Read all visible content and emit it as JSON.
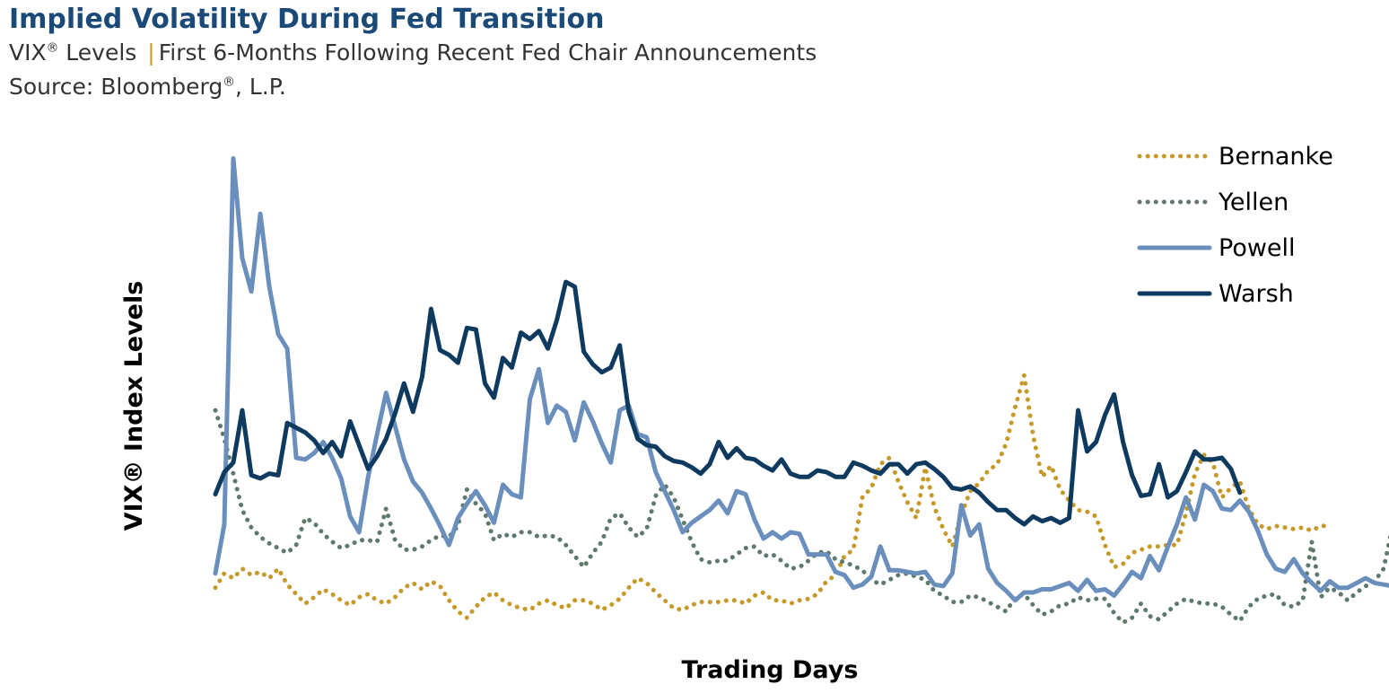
{
  "header": {
    "title": "Implied Volatility During Fed Transition",
    "subtitle_prefix": "VIX",
    "subtitle_reg": "®",
    "subtitle_mid": " Levels",
    "subtitle_sep": "|",
    "subtitle_rest": "First 6-Months Following Recent Fed Chair Announcements",
    "source_prefix": "Source: Bloomberg",
    "source_reg": "®",
    "source_rest": ", L.P."
  },
  "chart_data": {
    "type": "line",
    "title": "Implied Volatility During Fed Transition",
    "xlabel": "Trading Days",
    "ylabel": "VIX® Index Levels",
    "xlim": [
      0,
      129
    ],
    "ylim": [
      8,
      42
    ],
    "grid": false,
    "legend_position": "top-right",
    "colors": {
      "Bernanke": "#c69a2a",
      "Yellen": "#5f7a6b",
      "Powell": "#6a8fbd",
      "Warsh": "#0f3a60"
    },
    "series": [
      {
        "name": "Bernanke",
        "style": "dotted",
        "values": [
          13.4,
          14.3,
          14.0,
          14.6,
          14.2,
          14.4,
          14.0,
          14.6,
          13.6,
          13.0,
          12.4,
          12.8,
          13.3,
          13.0,
          12.6,
          12.3,
          12.8,
          13.0,
          12.6,
          12.4,
          12.8,
          13.4,
          13.7,
          13.3,
          13.8,
          13.5,
          12.6,
          11.9,
          11.5,
          12.2,
          12.8,
          13.1,
          12.6,
          12.3,
          12.1,
          12.0,
          12.4,
          12.6,
          12.3,
          12.1,
          12.6,
          12.6,
          12.4,
          12.0,
          12.3,
          12.7,
          13.4,
          14.0,
          13.7,
          13.1,
          12.6,
          12.1,
          12.0,
          12.3,
          12.5,
          12.5,
          12.5,
          12.6,
          12.6,
          12.4,
          12.9,
          13.1,
          12.6,
          12.6,
          12.4,
          12.6,
          12.7,
          13.0,
          13.8,
          14.2,
          15.4,
          15.8,
          19.1,
          19.7,
          21.2,
          21.6,
          20.1,
          18.8,
          17.8,
          21.0,
          18.5,
          17.1,
          16.0,
          18.0,
          19.5,
          20.0,
          20.8,
          21.2,
          22.5,
          24.8,
          26.8,
          23.0,
          20.4,
          21.1,
          19.6,
          18.9,
          18.3,
          18.2,
          17.9,
          16.1,
          14.7,
          14.9,
          15.6,
          15.8,
          16.0,
          16.0,
          16.1,
          16.1,
          18.1,
          20.6,
          21.8,
          21.3,
          19.1,
          19.7,
          20.1,
          18.4,
          17.4,
          17.1,
          17.3,
          17.2,
          17.1,
          17.2,
          17.0,
          17.3,
          17.3
        ]
      },
      {
        "name": "Yellen",
        "style": "dotted",
        "values": [
          24.6,
          22.8,
          20.6,
          18.3,
          17.2,
          16.6,
          16.2,
          15.9,
          15.6,
          16.1,
          17.8,
          17.5,
          16.8,
          16.3,
          15.9,
          16.1,
          16.4,
          16.4,
          16.3,
          18.4,
          16.4,
          15.8,
          15.8,
          16.0,
          16.4,
          16.7,
          16.6,
          17.3,
          19.6,
          18.7,
          18.1,
          16.4,
          16.8,
          16.6,
          16.9,
          16.9,
          16.6,
          16.7,
          16.6,
          16.1,
          15.4,
          14.7,
          15.6,
          16.3,
          17.8,
          18.1,
          17.2,
          16.6,
          17.1,
          19.2,
          19.9,
          19.1,
          17.7,
          16.3,
          15.2,
          15.0,
          15.1,
          15.1,
          15.5,
          15.9,
          16.0,
          15.4,
          15.5,
          15.1,
          14.6,
          14.7,
          15.1,
          15.6,
          15.7,
          15.2,
          15.0,
          14.8,
          14.5,
          13.9,
          13.6,
          13.9,
          14.2,
          14.3,
          14.1,
          13.9,
          13.2,
          12.9,
          12.5,
          12.5,
          12.9,
          12.8,
          12.5,
          12.2,
          11.9,
          12.8,
          13.0,
          12.3,
          11.7,
          11.9,
          12.3,
          12.4,
          12.8,
          12.6,
          12.7,
          12.7,
          11.8,
          11.2,
          11.5,
          12.4,
          11.6,
          11.4,
          11.9,
          12.4,
          12.7,
          12.5,
          12.4,
          12.4,
          12.2,
          11.7,
          11.3,
          12.2,
          12.7,
          12.9,
          13.0,
          12.3,
          12.2,
          12.6,
          16.3,
          12.8,
          13.4,
          13.1,
          12.6,
          13.1,
          13.5,
          13.8,
          14.6,
          17.3,
          20.4,
          20.6
        ]
      },
      {
        "name": "Powell",
        "style": "solid",
        "values": [
          14.3,
          17.4,
          40.5,
          34.2,
          32.1,
          37.0,
          32.4,
          29.4,
          28.5,
          21.6,
          21.5,
          21.9,
          22.6,
          21.6,
          20.3,
          17.9,
          16.9,
          20.4,
          23.1,
          25.7,
          23.6,
          21.5,
          20.1,
          19.4,
          18.4,
          17.3,
          16.1,
          17.8,
          18.7,
          19.5,
          18.6,
          17.5,
          19.9,
          19.3,
          19.1,
          25.3,
          27.2,
          23.8,
          24.9,
          24.5,
          22.7,
          25.1,
          23.9,
          22.5,
          21.3,
          24.6,
          24.9,
          23.1,
          22.9,
          20.7,
          19.5,
          18.3,
          16.9,
          17.5,
          17.9,
          18.3,
          18.9,
          18.1,
          19.5,
          19.3,
          17.7,
          16.5,
          16.9,
          16.5,
          16.9,
          16.8,
          15.5,
          15.5,
          15.5,
          14.4,
          14.2,
          13.4,
          13.6,
          14.1,
          16.0,
          14.5,
          14.5,
          14.4,
          14.3,
          14.4,
          13.6,
          13.5,
          14.3,
          18.6,
          16.7,
          17.4,
          14.6,
          13.7,
          13.2,
          12.6,
          13.1,
          13.1,
          13.3,
          13.3,
          13.5,
          13.7,
          13.2,
          13.9,
          13.2,
          13.3,
          12.9,
          13.6,
          14.4,
          14.0,
          15.4,
          14.5,
          16.0,
          17.4,
          19.1,
          17.7,
          19.9,
          19.5,
          18.4,
          18.3,
          18.9,
          18.2,
          17.0,
          15.5,
          14.6,
          14.4,
          15.2,
          14.3,
          13.7,
          13.2,
          13.8,
          13.4,
          13.4,
          13.7,
          14.0,
          13.7,
          13.6,
          13.5,
          13.4,
          13.7,
          15.3,
          13.7,
          13.9,
          14.1
        ]
      },
      {
        "name": "Warsh",
        "style": "solid",
        "values": [
          19.3,
          20.7,
          21.3,
          24.6,
          20.5,
          20.3,
          20.6,
          20.5,
          23.8,
          23.5,
          23.2,
          22.7,
          21.9,
          22.6,
          21.7,
          23.9,
          22.4,
          20.9,
          21.7,
          22.8,
          24.4,
          26.3,
          24.5,
          26.7,
          31.0,
          28.4,
          28.1,
          27.6,
          29.8,
          29.7,
          26.3,
          25.4,
          27.9,
          27.3,
          29.5,
          29.1,
          29.6,
          28.5,
          30.3,
          32.7,
          32.4,
          28.3,
          27.5,
          27.0,
          27.3,
          28.7,
          24.5,
          22.8,
          22.4,
          22.3,
          21.7,
          21.4,
          21.3,
          21.0,
          20.6,
          21.2,
          22.6,
          21.6,
          22.2,
          21.6,
          21.5,
          21.1,
          20.8,
          21.5,
          20.6,
          20.4,
          20.4,
          20.8,
          20.7,
          20.4,
          20.4,
          21.3,
          21.1,
          20.8,
          20.6,
          21.2,
          21.2,
          20.6,
          21.2,
          21.3,
          20.9,
          20.4,
          19.7,
          19.6,
          19.8,
          19.4,
          18.8,
          18.3,
          18.3,
          17.8,
          17.4,
          17.9,
          17.6,
          17.8,
          17.5,
          17.8,
          24.6,
          22.0,
          22.6,
          24.3,
          25.6,
          22.6,
          20.5,
          19.2,
          19.3,
          21.2,
          19.1,
          19.5,
          20.7,
          22.0,
          21.5,
          21.5,
          21.6,
          20.9,
          19.4
        ]
      }
    ]
  }
}
